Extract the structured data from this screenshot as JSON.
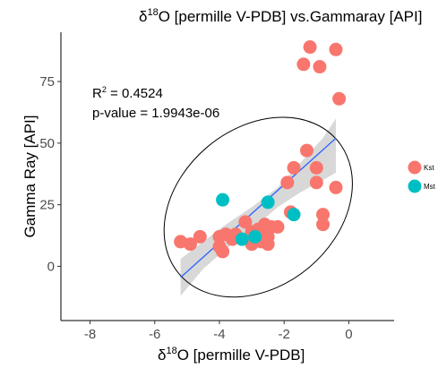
{
  "chart_data": {
    "type": "scatter",
    "title": {
      "prefix": "δ",
      "superscript": "18",
      "rest": "O [permille V-PDB] vs.Gammaray [API]"
    },
    "xlabel": {
      "prefix": "δ",
      "superscript": "18",
      "rest": "O [permille V-PDB]"
    },
    "ylabel": "Gamma Ray [API]",
    "xlim": [
      -8.9,
      1.4
    ],
    "ylim": [
      -22,
      95
    ],
    "xticks": [
      -8,
      -6,
      -4,
      -2,
      0
    ],
    "yticks": [
      0,
      25,
      50,
      75
    ],
    "grid": false,
    "legend_position": "right",
    "annotations": {
      "r2_prefix": "R",
      "r2_superscript": "2",
      "r2_value": " = 0.4524",
      "p_value": "p-value = 1.9943e-06"
    },
    "regression": {
      "x_start": -5.2,
      "x_end": -0.4,
      "y_start": -4.5,
      "y_end": 52,
      "confidence_band": [
        {
          "x": -5.2,
          "lower": -12,
          "upper": 3
        },
        {
          "x": -4.5,
          "lower": -1,
          "upper": 10
        },
        {
          "x": -3.8,
          "lower": 7,
          "upper": 17
        },
        {
          "x": -3.0,
          "lower": 15,
          "upper": 24
        },
        {
          "x": -2.2,
          "lower": 24,
          "upper": 32
        },
        {
          "x": -1.5,
          "lower": 30,
          "upper": 42
        },
        {
          "x": -0.8,
          "lower": 35,
          "upper": 52
        },
        {
          "x": -0.4,
          "lower": 38,
          "upper": 60
        }
      ]
    },
    "ellipse": {
      "cx": -2.8,
      "cy": 24,
      "rx": 3.2,
      "ry": 32,
      "angle_deg": -40
    },
    "series": [
      {
        "name": "Kst",
        "color": "#f8766d",
        "points": [
          {
            "x": -1.2,
            "y": 89
          },
          {
            "x": -0.4,
            "y": 88
          },
          {
            "x": -1.4,
            "y": 82
          },
          {
            "x": -0.9,
            "y": 81
          },
          {
            "x": -0.3,
            "y": 68
          },
          {
            "x": -1.3,
            "y": 47
          },
          {
            "x": -1.7,
            "y": 40
          },
          {
            "x": -1.0,
            "y": 40
          },
          {
            "x": -1.9,
            "y": 34
          },
          {
            "x": -1.0,
            "y": 34
          },
          {
            "x": -0.4,
            "y": 32
          },
          {
            "x": -0.8,
            "y": 21
          },
          {
            "x": -1.8,
            "y": 22
          },
          {
            "x": -3.2,
            "y": 18
          },
          {
            "x": -3.0,
            "y": 14
          },
          {
            "x": -2.6,
            "y": 17
          },
          {
            "x": -2.4,
            "y": 16
          },
          {
            "x": -2.2,
            "y": 16
          },
          {
            "x": -2.8,
            "y": 15
          },
          {
            "x": -3.5,
            "y": 13
          },
          {
            "x": -3.8,
            "y": 13
          },
          {
            "x": -4.0,
            "y": 12
          },
          {
            "x": -3.6,
            "y": 11
          },
          {
            "x": -4.6,
            "y": 12
          },
          {
            "x": -5.2,
            "y": 10
          },
          {
            "x": -4.9,
            "y": 9
          },
          {
            "x": -4.0,
            "y": 8
          },
          {
            "x": -3.9,
            "y": 6
          },
          {
            "x": -3.1,
            "y": 11
          },
          {
            "x": -3.0,
            "y": 9
          },
          {
            "x": -2.5,
            "y": 12
          },
          {
            "x": -2.7,
            "y": 10
          },
          {
            "x": -2.5,
            "y": 9
          },
          {
            "x": -0.8,
            "y": 17
          }
        ]
      },
      {
        "name": "Mst",
        "color": "#00bfc4",
        "points": [
          {
            "x": -3.9,
            "y": 27
          },
          {
            "x": -2.5,
            "y": 26
          },
          {
            "x": -1.7,
            "y": 21
          },
          {
            "x": -3.3,
            "y": 11
          },
          {
            "x": -2.9,
            "y": 12
          }
        ]
      }
    ]
  }
}
